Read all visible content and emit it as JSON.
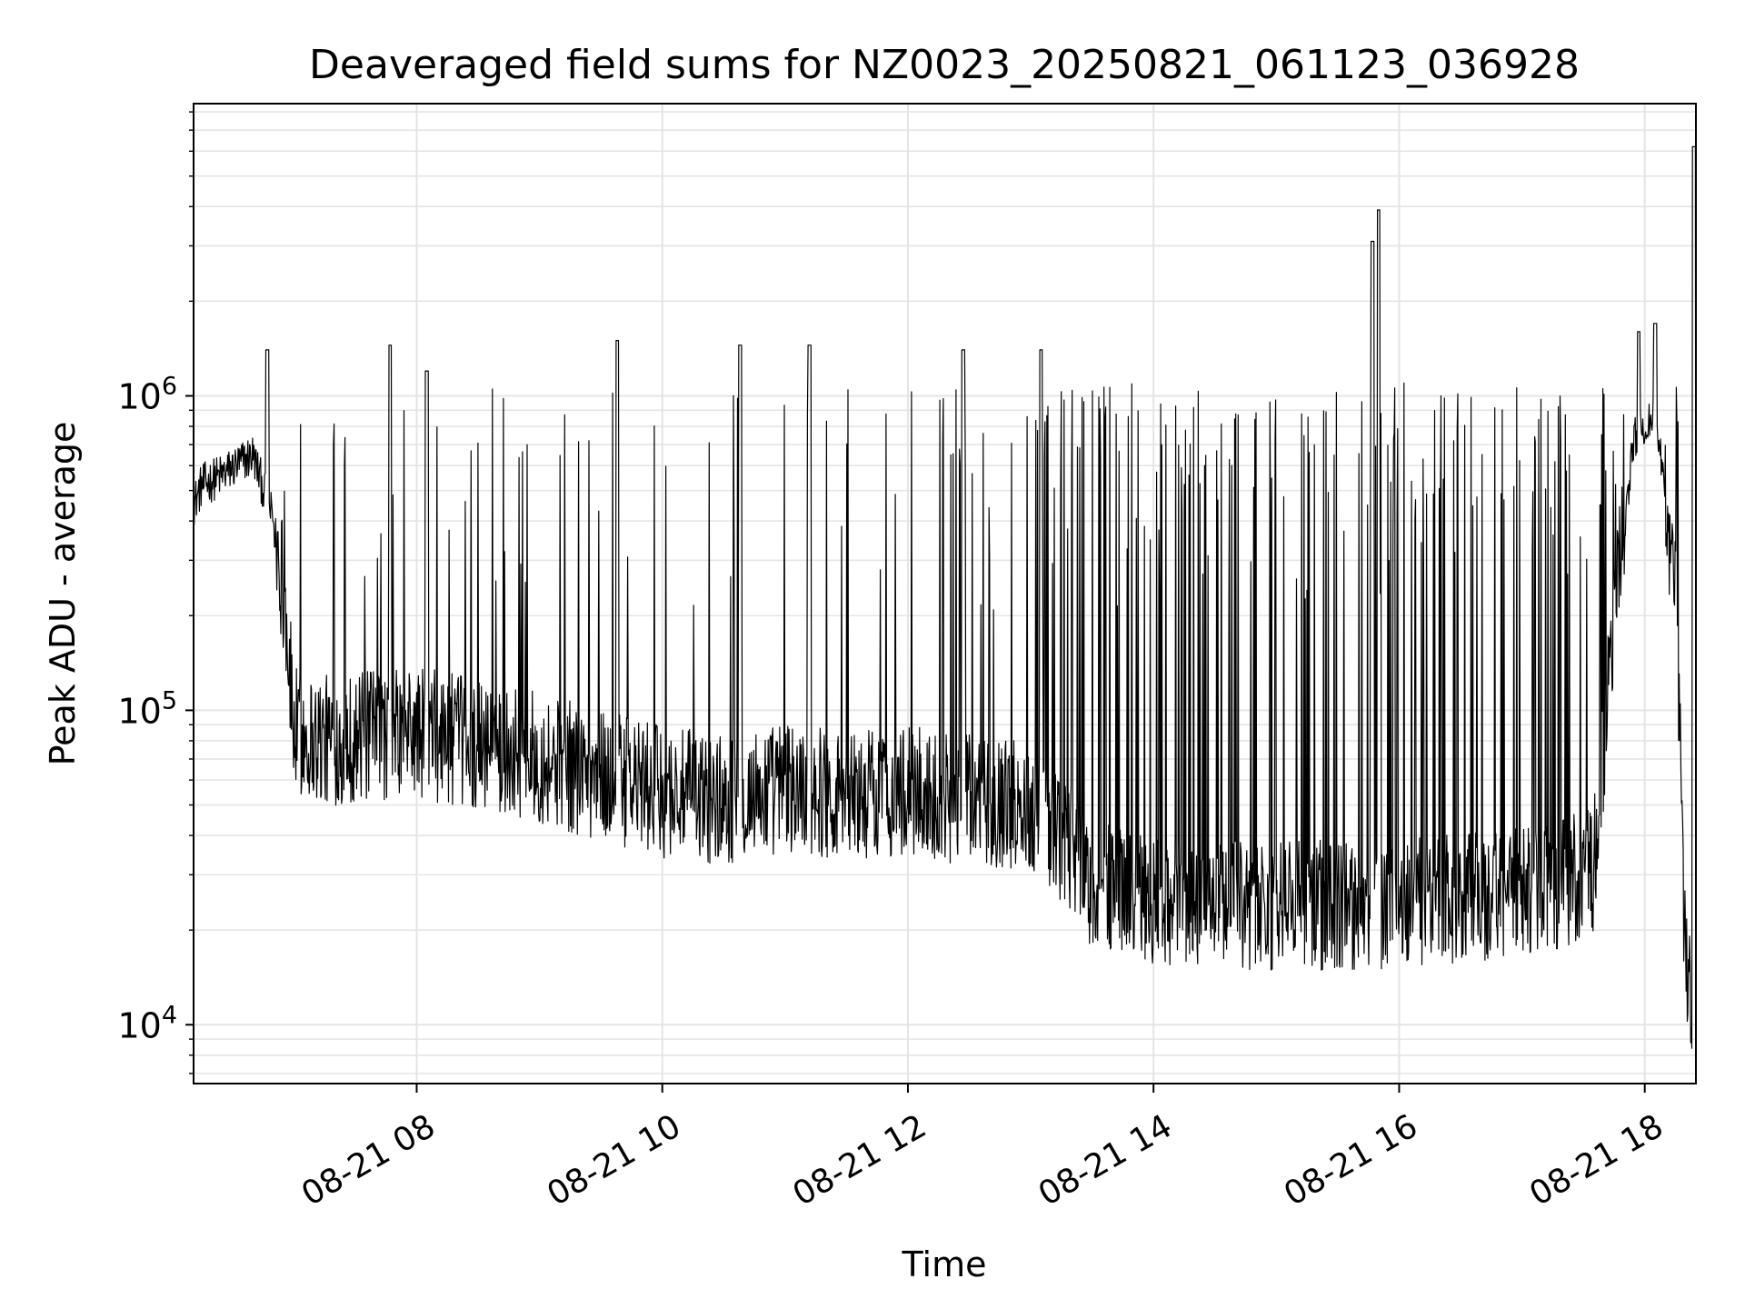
{
  "chart_data": {
    "type": "line",
    "title": "Deaveraged field sums for NZ0023_20250821_061123_036928",
    "xlabel": "Time",
    "ylabel": "Peak ADU - average",
    "yscale": "log",
    "xlim": [
      "2025-08-21 06:11",
      "2025-08-21 18:25"
    ],
    "ylim": [
      6500,
      8500000
    ],
    "grid": true,
    "x_ticks": [
      {
        "value": "2025-08-21 08:00",
        "label": "08-21 08"
      },
      {
        "value": "2025-08-21 10:00",
        "label": "08-21 10"
      },
      {
        "value": "2025-08-21 12:00",
        "label": "08-21 12"
      },
      {
        "value": "2025-08-21 14:00",
        "label": "08-21 14"
      },
      {
        "value": "2025-08-21 16:00",
        "label": "08-21 16"
      },
      {
        "value": "2025-08-21 18:00",
        "label": "08-21 18"
      }
    ],
    "y_ticks": [
      {
        "value": 10000,
        "base": "10",
        "exp": "4"
      },
      {
        "value": 100000,
        "base": "10",
        "exp": "5"
      },
      {
        "value": 1000000,
        "base": "10",
        "exp": "6"
      }
    ],
    "series": [
      {
        "color": "#000000",
        "baseline_profile": {
          "x": [
            "2025-08-21 06:11",
            "2025-08-21 06:15",
            "2025-08-21 06:25",
            "2025-08-21 06:40",
            "2025-08-21 06:50",
            "2025-08-21 06:55",
            "2025-08-21 07:00",
            "2025-08-21 07:15",
            "2025-08-21 08:00",
            "2025-08-21 08:45",
            "2025-08-21 09:30",
            "2025-08-21 10:00",
            "2025-08-21 10:30",
            "2025-08-21 11:00",
            "2025-08-21 11:30",
            "2025-08-21 12:00",
            "2025-08-21 12:30",
            "2025-08-21 13:00",
            "2025-08-21 13:15",
            "2025-08-21 13:30",
            "2025-08-21 14:00",
            "2025-08-21 15:00",
            "2025-08-21 16:00",
            "2025-08-21 17:00",
            "2025-08-21 17:35",
            "2025-08-21 17:45",
            "2025-08-21 17:55",
            "2025-08-21 18:05",
            "2025-08-21 18:15",
            "2025-08-21 18:20",
            "2025-08-21 18:25"
          ],
          "y": [
            450000,
            520000,
            560000,
            650000,
            400000,
            250000,
            85000,
            80000,
            85000,
            75000,
            62000,
            55000,
            52000,
            57000,
            54000,
            55000,
            52000,
            50000,
            40000,
            28000,
            25000,
            24000,
            24000,
            26000,
            30000,
            200000,
            750000,
            900000,
            250000,
            15000,
            12000
          ]
        },
        "spikes": [
          {
            "x": "2025-08-21 06:47",
            "y": 1400000
          },
          {
            "x": "2025-08-21 07:47",
            "y": 1450000
          },
          {
            "x": "2025-08-21 08:05",
            "y": 1200000
          },
          {
            "x": "2025-08-21 09:38",
            "y": 1500000
          },
          {
            "x": "2025-08-21 10:38",
            "y": 1450000
          },
          {
            "x": "2025-08-21 11:12",
            "y": 1450000
          },
          {
            "x": "2025-08-21 12:27",
            "y": 1400000
          },
          {
            "x": "2025-08-21 13:05",
            "y": 1400000
          },
          {
            "x": "2025-08-21 15:47",
            "y": 3100000
          },
          {
            "x": "2025-08-21 15:50",
            "y": 3900000
          },
          {
            "x": "2025-08-21 17:57",
            "y": 1600000
          },
          {
            "x": "2025-08-21 18:05",
            "y": 1700000
          },
          {
            "x": "2025-08-21 18:24",
            "y": 6200000
          }
        ]
      }
    ]
  }
}
